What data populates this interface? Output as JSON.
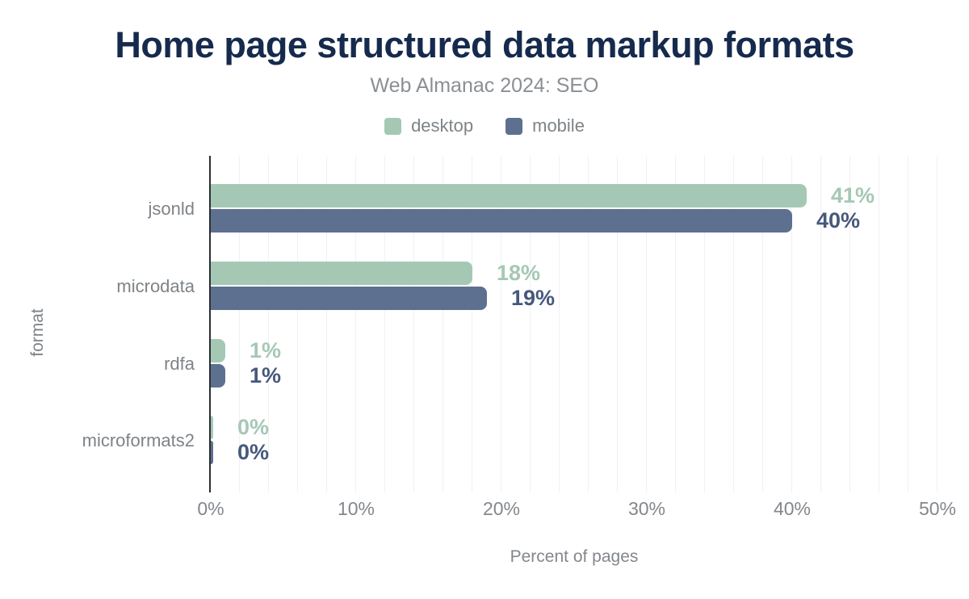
{
  "title": "Home page structured data markup formats",
  "subtitle": "Web Almanac 2024: SEO",
  "chart_data": {
    "type": "bar",
    "orientation": "horizontal",
    "title": "Home page structured data markup formats",
    "subtitle": "Web Almanac 2024: SEO",
    "categories": [
      "jsonld",
      "microdata",
      "rdfa",
      "microformats2"
    ],
    "series": [
      {
        "name": "desktop",
        "color": "#a5c8b5",
        "label_color": "#a5c8b5",
        "values": [
          41,
          18,
          1,
          0
        ],
        "labels": [
          "41%",
          "18%",
          "1%",
          "0%"
        ]
      },
      {
        "name": "mobile",
        "color": "#5d7090",
        "label_color": "#46597c",
        "values": [
          40,
          19,
          1,
          0
        ],
        "labels": [
          "40%",
          "19%",
          "1%",
          "0%"
        ]
      }
    ],
    "xlabel": "Percent of pages",
    "ylabel": "format",
    "xlim": [
      0,
      50
    ],
    "xticks": [
      "0%",
      "10%",
      "20%",
      "30%",
      "40%",
      "50%"
    ],
    "xtick_values": [
      0,
      10,
      20,
      30,
      40,
      50
    ],
    "grid_step_percent": 2,
    "grid": "vertical-minor-lines",
    "legend_position": "top-center"
  },
  "colors": {
    "background": "#ffffff",
    "title": "#162a4d",
    "subtitle_text": "#8a8f94",
    "axis_text": "#83878c",
    "category_text": "#7e8387",
    "axis_line": "#2c2f33",
    "gridline": "#f0f1f4"
  }
}
